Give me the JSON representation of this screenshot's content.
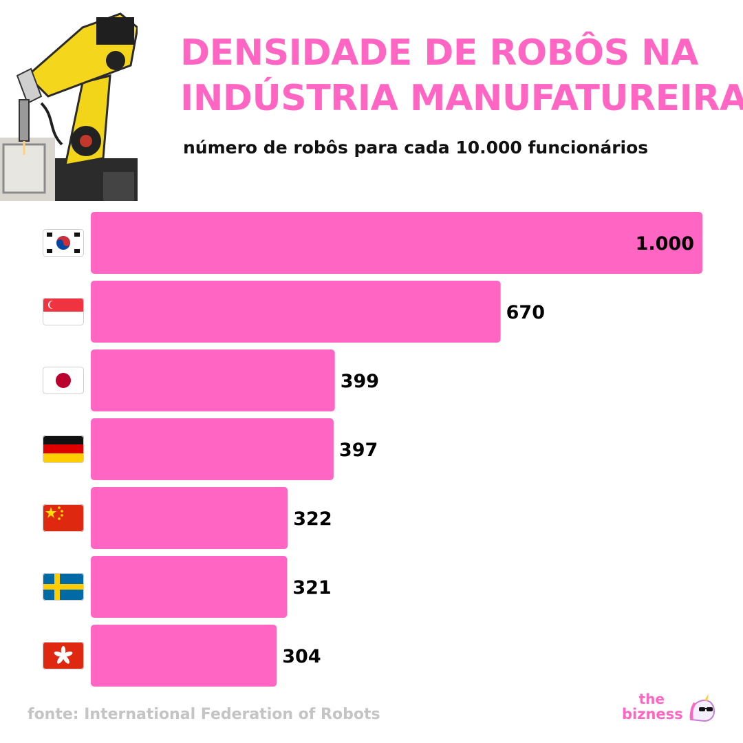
{
  "header": {
    "title_line1": "DENSIDADE DE ROBÔS NA",
    "title_line2": "INDÚSTRIA MANUFATUREIRA",
    "subtitle": "número de robôs para cada 10.000 funcionários"
  },
  "footer": {
    "source": "fonte: International Federation of Robots",
    "logo_the": "the",
    "logo_bizness": "bizness",
    "logo_icon": "unicorn-icon"
  },
  "colors": {
    "accent": "#ff66c4",
    "text": "#111111",
    "source": "#c4c4c4"
  },
  "chart_data": {
    "type": "bar",
    "orientation": "horizontal",
    "categories": [
      "south-korea-flag",
      "singapore-flag",
      "japan-flag",
      "germany-flag",
      "china-flag",
      "sweden-flag",
      "hong-kong-flag"
    ],
    "values": [
      1000,
      670,
      399,
      397,
      322,
      321,
      304
    ],
    "data_labels": [
      "1.000",
      "670",
      "399",
      "397",
      "322",
      "321",
      "304"
    ],
    "xlim": [
      0,
      1000
    ],
    "grid": false,
    "legend": "none"
  }
}
